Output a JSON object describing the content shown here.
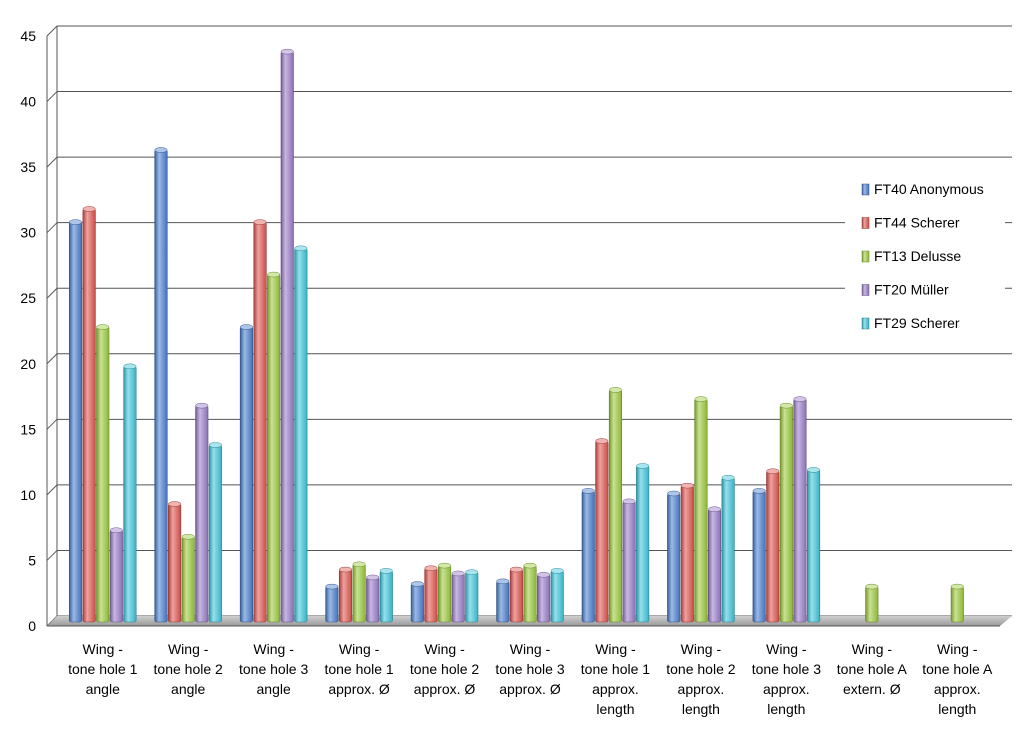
{
  "chart_data": {
    "type": "bar",
    "title": "",
    "xlabel": "",
    "ylabel": "",
    "ylim": [
      0,
      45
    ],
    "yticks": [
      0,
      5,
      10,
      15,
      20,
      25,
      30,
      35,
      40,
      45
    ],
    "grid": true,
    "legend_position": "right",
    "categories": [
      [
        "Wing -",
        "tone hole 1",
        "angle"
      ],
      [
        "Wing -",
        "tone hole 2",
        "angle"
      ],
      [
        "Wing -",
        "tone hole 3",
        "angle"
      ],
      [
        "Wing -",
        "tone hole 1",
        "approx. Ø"
      ],
      [
        "Wing -",
        "tone hole 2",
        "approx. Ø"
      ],
      [
        "Wing -",
        "tone hole 3",
        "approx. Ø"
      ],
      [
        "Wing -",
        "tone hole 1",
        "approx.",
        "length"
      ],
      [
        "Wing -",
        "tone hole 2",
        "approx.",
        "length"
      ],
      [
        "Wing -",
        "tone hole 3",
        "approx.",
        "length"
      ],
      [
        "Wing -",
        "tone hole A",
        "extern. Ø"
      ],
      [
        "Wing -",
        "tone hole A",
        "approx.",
        "length"
      ]
    ],
    "series": [
      {
        "name": "FT40 Anonymous",
        "color": "#4a7fd0",
        "values": [
          30.5,
          36,
          22.5,
          2.7,
          2.9,
          3.1,
          10,
          9.8,
          10,
          null,
          null
        ]
      },
      {
        "name": "FT44 Scherer",
        "color": "#e05550",
        "values": [
          31.5,
          9,
          30.5,
          4,
          4.1,
          4,
          13.8,
          10.4,
          11.5,
          null,
          null
        ]
      },
      {
        "name": "FT13 Delusse",
        "color": "#9ccb3c",
        "values": [
          22.5,
          6.5,
          26.5,
          4.4,
          4.3,
          4.3,
          17.7,
          17,
          16.5,
          2.7,
          2.7
        ]
      },
      {
        "name": "FT20 Müller",
        "color": "#9a7cc8",
        "values": [
          7,
          16.5,
          43.5,
          3.4,
          3.7,
          3.6,
          9.2,
          8.6,
          17,
          null,
          null
        ]
      },
      {
        "name": "FT29 Scherer",
        "color": "#3fc6dc",
        "values": [
          19.5,
          13.5,
          28.5,
          3.9,
          3.8,
          3.9,
          11.9,
          11,
          11.6,
          null,
          null
        ]
      }
    ]
  }
}
